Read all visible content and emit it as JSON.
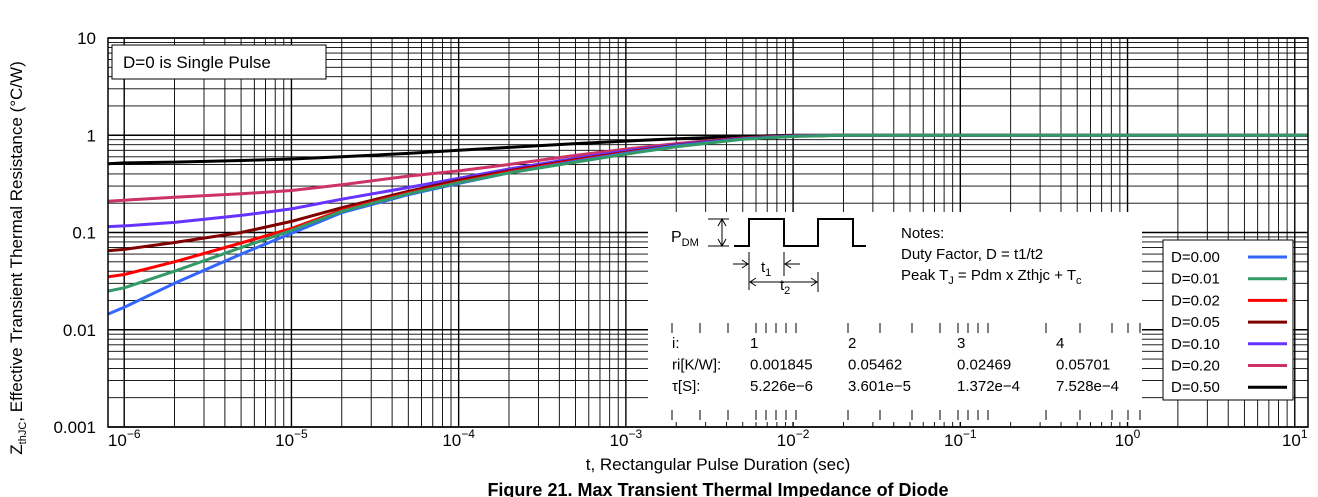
{
  "chart_data": {
    "type": "line",
    "title": "Figure 21. Max Transient Thermal Impedance of Diode",
    "xlabel": "t, Rectangular Pulse Duration (sec)",
    "ylabel_sym": "Z",
    "ylabel_sub": "thJC",
    "ylabel_rest": ", Effective Transient Thermal Resistance (°C/W)",
    "xscale": "log",
    "yscale": "log",
    "xlim": [
      8e-07,
      12
    ],
    "ylim": [
      0.001,
      10
    ],
    "grid": true,
    "x_ticks": [
      {
        "base": "10",
        "exp": "−6"
      },
      {
        "base": "10",
        "exp": "−5"
      },
      {
        "base": "10",
        "exp": "−4"
      },
      {
        "base": "10",
        "exp": "−3"
      },
      {
        "base": "10",
        "exp": "−2"
      },
      {
        "base": "10",
        "exp": "−1"
      },
      {
        "base": "10",
        "exp": "0"
      },
      {
        "base": "10",
        "exp": "1"
      }
    ],
    "y_ticks": [
      "10",
      "1",
      "0.1",
      "0.01",
      "0.001"
    ],
    "annotation": "D=0 is Single Pulse",
    "legend_position": "right",
    "x": [
      8e-07,
      1e-06,
      2e-06,
      5e-06,
      1e-05,
      2e-05,
      5e-05,
      0.0001,
      0.0002,
      0.0005,
      0.001,
      0.002,
      0.005,
      0.01,
      0.02,
      0.05,
      0.1,
      1,
      12
    ],
    "series": [
      {
        "name": "D=0.00",
        "color": "#3366ff",
        "values": [
          0.0145,
          0.017,
          0.03,
          0.06,
          0.098,
          0.16,
          0.245,
          0.32,
          0.41,
          0.54,
          0.65,
          0.78,
          0.92,
          0.98,
          1.0,
          1.0,
          1.0,
          1.0,
          1.0
        ]
      },
      {
        "name": "D=0.01",
        "color": "#339966",
        "values": [
          0.025,
          0.027,
          0.04,
          0.07,
          0.105,
          0.165,
          0.25,
          0.325,
          0.41,
          0.53,
          0.64,
          0.76,
          0.91,
          0.97,
          1.0,
          1.0,
          1.0,
          1.0,
          1.0
        ]
      },
      {
        "name": "D=0.02",
        "color": "#ff0000",
        "values": [
          0.035,
          0.037,
          0.05,
          0.078,
          0.11,
          0.17,
          0.255,
          0.33,
          0.42,
          0.55,
          0.66,
          0.78,
          0.92,
          0.98,
          1.0,
          1.0,
          1.0,
          1.0,
          1.0
        ]
      },
      {
        "name": "D=0.05",
        "color": "#800000",
        "values": [
          0.065,
          0.067,
          0.079,
          0.1,
          0.13,
          0.18,
          0.265,
          0.345,
          0.43,
          0.56,
          0.67,
          0.79,
          0.93,
          0.98,
          1.0,
          1.0,
          1.0,
          1.0,
          1.0
        ]
      },
      {
        "name": "D=0.10",
        "color": "#6633ff",
        "values": [
          0.115,
          0.117,
          0.127,
          0.15,
          0.175,
          0.22,
          0.29,
          0.36,
          0.45,
          0.58,
          0.69,
          0.8,
          0.93,
          0.98,
          1.0,
          1.0,
          1.0,
          1.0,
          1.0
        ]
      },
      {
        "name": "D=0.20",
        "color": "#cc3366",
        "values": [
          0.21,
          0.215,
          0.23,
          0.25,
          0.27,
          0.31,
          0.38,
          0.43,
          0.5,
          0.62,
          0.72,
          0.82,
          0.94,
          0.99,
          1.0,
          1.0,
          1.0,
          1.0,
          1.0
        ]
      },
      {
        "name": "D=0.50",
        "color": "#000000",
        "values": [
          0.51,
          0.52,
          0.53,
          0.55,
          0.57,
          0.6,
          0.65,
          0.7,
          0.75,
          0.82,
          0.87,
          0.92,
          0.97,
          1.0,
          1.0,
          1.0,
          1.0,
          1.0,
          1.0
        ]
      }
    ]
  },
  "pulse_inset": {
    "pdm_main": "P",
    "pdm_sub": "DM",
    "t1_main": "t",
    "t1_sub": "1",
    "t2_main": "t",
    "t2_sub": "2"
  },
  "notes": {
    "title": "Notes:",
    "line1": "Duty Factor, D = t1/t2",
    "line2_pre": "Peak T",
    "line2_sub": "J",
    "line2_mid": " = Pdm x Zthjc + T",
    "line2_sub2": "c"
  },
  "rc_table": {
    "rows": [
      {
        "label": "i:",
        "values": [
          "1",
          "2",
          "3",
          "4"
        ]
      },
      {
        "label": "ri[K/W]:",
        "values": [
          "0.001845",
          "0.05462",
          "0.02469",
          "0.05701"
        ]
      },
      {
        "label": "τ[S]:",
        "values": [
          "5.226e−6",
          "3.601e−5",
          "1.372e−4",
          "7.528e−4"
        ]
      }
    ]
  }
}
